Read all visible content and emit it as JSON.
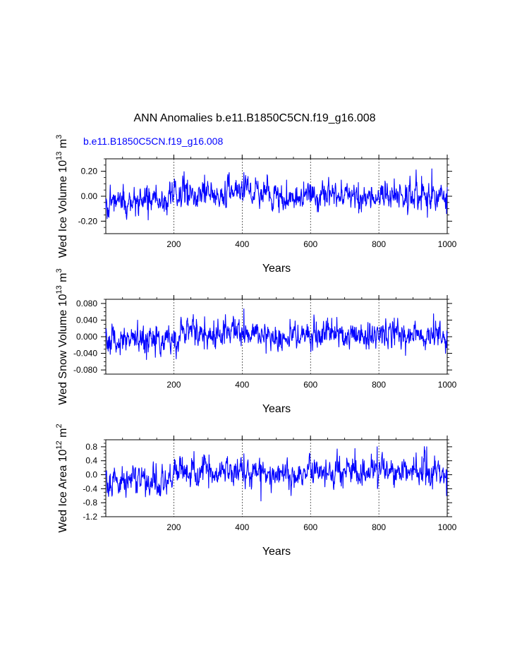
{
  "page": {
    "title": "ANN Anomalies b.e11.B1850C5CN.f19_g16.008",
    "subtitle": "b.e11.B1850C5CN.f19_g16.008",
    "subtitle_color": "#0000ff"
  },
  "chart_data": [
    {
      "type": "line",
      "ylabel": "Wed Ice Volume 10",
      "ylabel_exp": "13",
      "ylabel_unit": "m",
      "ylabel_unit_exp": "3",
      "xlabel": "Years",
      "xlim": [
        1,
        1000
      ],
      "ylim": [
        -0.3,
        0.3
      ],
      "xticks": [
        "200",
        "400",
        "600",
        "800",
        "1000"
      ],
      "yticks": [
        "0.20",
        "0.00",
        "-0.20"
      ],
      "grid": "vertical dashed at 200, 400, 600, 800",
      "series": [
        {
          "color": "#0000ff",
          "n_years": 1000,
          "amplitude": 0.06,
          "anchors": [
            [
              1,
              -0.03
            ],
            [
              100,
              -0.04
            ],
            [
              180,
              -0.02
            ],
            [
              200,
              0.03
            ],
            [
              260,
              0.02
            ],
            [
              400,
              0.04
            ],
            [
              500,
              -0.01
            ],
            [
              600,
              0.02
            ],
            [
              700,
              0.0
            ],
            [
              800,
              0.01
            ],
            [
              900,
              0.01
            ],
            [
              1000,
              0.0
            ]
          ],
          "peaks": [
            [
              10,
              -0.17
            ],
            [
              125,
              -0.19
            ],
            [
              240,
              0.13
            ],
            [
              290,
              0.17
            ],
            [
              405,
              0.19
            ],
            [
              530,
              0.13
            ],
            [
              740,
              0.11
            ],
            [
              845,
              0.14
            ],
            [
              925,
              0.16
            ],
            [
              955,
              0.22
            ],
            [
              998,
              -0.14
            ]
          ]
        }
      ]
    },
    {
      "type": "line",
      "ylabel": "Wed Snow Volume 10",
      "ylabel_exp": "13",
      "ylabel_unit": "m",
      "ylabel_unit_exp": "3",
      "xlabel": "Years",
      "xlim": [
        1,
        1000
      ],
      "ylim": [
        -0.09,
        0.09
      ],
      "xticks": [
        "200",
        "400",
        "600",
        "800",
        "1000"
      ],
      "yticks": [
        "0.080",
        "0.040",
        "0.000",
        "-0.040",
        "-0.080"
      ],
      "grid": "vertical dashed at 200, 400, 600, 800",
      "series": [
        {
          "color": "#0000ff",
          "n_years": 1000,
          "amplitude": 0.018,
          "anchors": [
            [
              1,
              -0.01
            ],
            [
              100,
              -0.012
            ],
            [
              180,
              -0.01
            ],
            [
              200,
              0.01
            ],
            [
              300,
              0.008
            ],
            [
              400,
              0.012
            ],
            [
              500,
              -0.005
            ],
            [
              600,
              0.006
            ],
            [
              700,
              0.002
            ],
            [
              800,
              0.005
            ],
            [
              900,
              0.004
            ],
            [
              1000,
              0.002
            ]
          ],
          "peaks": [
            [
              120,
              -0.055
            ],
            [
              240,
              0.045
            ],
            [
              290,
              0.048
            ],
            [
              405,
              0.067
            ],
            [
              470,
              -0.04
            ],
            [
              540,
              0.042
            ],
            [
              845,
              0.045
            ],
            [
              960,
              0.055
            ],
            [
              995,
              -0.04
            ]
          ]
        }
      ]
    },
    {
      "type": "line",
      "ylabel": "Wed Ice Area 10",
      "ylabel_exp": "12",
      "ylabel_unit": "m",
      "ylabel_unit_exp": "2",
      "xlabel": "Years",
      "xlim": [
        1,
        1000
      ],
      "ylim": [
        -1.2,
        1.0
      ],
      "xticks": [
        "200",
        "400",
        "600",
        "800",
        "1000"
      ],
      "yticks": [
        "0.8",
        "0.4",
        "0.0",
        "-0.4",
        "-0.8",
        "-1.2"
      ],
      "grid": "vertical dashed at 200, 400, 600, 800",
      "series": [
        {
          "color": "#0000ff",
          "n_years": 1000,
          "amplitude": 0.22,
          "anchors": [
            [
              1,
              -0.2
            ],
            [
              100,
              -0.15
            ],
            [
              180,
              -0.2
            ],
            [
              200,
              0.1
            ],
            [
              300,
              0.05
            ],
            [
              400,
              0.05
            ],
            [
              500,
              -0.05
            ],
            [
              600,
              0.05
            ],
            [
              700,
              0.05
            ],
            [
              800,
              0.1
            ],
            [
              900,
              0.1
            ],
            [
              1000,
              0.05
            ]
          ],
          "peaks": [
            [
              10,
              -0.45
            ],
            [
              60,
              -0.65
            ],
            [
              225,
              0.5
            ],
            [
              290,
              0.55
            ],
            [
              405,
              0.6
            ],
            [
              455,
              -0.75
            ],
            [
              730,
              0.75
            ],
            [
              795,
              0.8
            ],
            [
              940,
              0.8
            ],
            [
              998,
              -0.6
            ]
          ]
        }
      ]
    }
  ]
}
